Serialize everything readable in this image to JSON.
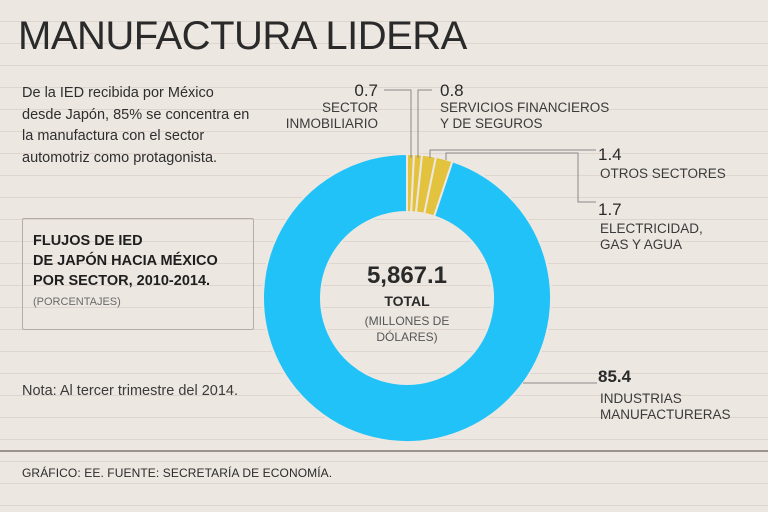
{
  "title": "MANUFACTURA LIDERA",
  "intro": "De la IED recibida por México desde Japón, 85% se concentra en la manufactura con el sector automotriz como protagonista.",
  "box": {
    "title_line1": "FLUJOS DE IED",
    "title_line2": "DE JAPÓN HACIA MÉXICO",
    "title_line3": "POR SECTOR, 2010-2014.",
    "subtitle": "(PORCENTAJES)"
  },
  "note": "Nota: Al tercer trimestre del 2014.",
  "footer": "GRÁFICO: EE. FUENTE: SECRETARÍA DE ECONOMÍA.",
  "colors": {
    "blue": "#20c2f7",
    "gold": "#e3c23d",
    "leader": "#8a8a8a"
  },
  "chart_data": {
    "type": "pie",
    "title": "FLUJOS DE IED DE JAPÓN HACIA MÉXICO POR SECTOR, 2010-2014.",
    "unit": "porcentajes",
    "center": {
      "total": "5,867.1",
      "label": "TOTAL",
      "unit_line1": "(MILLONES DE",
      "unit_line2": "DÓLARES)"
    },
    "slices": [
      {
        "name": "SECTOR INMOBILIARIO",
        "value": 0.7,
        "value_label": "0.7",
        "label_lines": [
          "SECTOR",
          "INMOBILIARIO"
        ],
        "color": "#e3c23d"
      },
      {
        "name": "SERVICIOS FINANCIEROS Y DE SEGUROS",
        "value": 0.8,
        "value_label": "0.8",
        "label_lines": [
          "SERVICIOS FINANCIEROS",
          "Y DE SEGUROS"
        ],
        "color": "#e3c23d"
      },
      {
        "name": "OTROS SECTORES",
        "value": 1.4,
        "value_label": "1.4",
        "label_lines": [
          "OTROS SECTORES"
        ],
        "color": "#e3c23d"
      },
      {
        "name": "ELECTRICIDAD, GAS Y AGUA",
        "value": 1.7,
        "value_label": "1.7",
        "label_lines": [
          "ELECTRICIDAD,",
          "GAS Y AGUA"
        ],
        "color": "#e3c23d"
      },
      {
        "name": "INDUSTRIAS MANUFACTURERAS",
        "value": 85.4,
        "value_label": "85.4",
        "label_lines": [
          "INDUSTRIAS",
          "MANUFACTURERAS"
        ],
        "color": "#20c2f7"
      }
    ]
  }
}
